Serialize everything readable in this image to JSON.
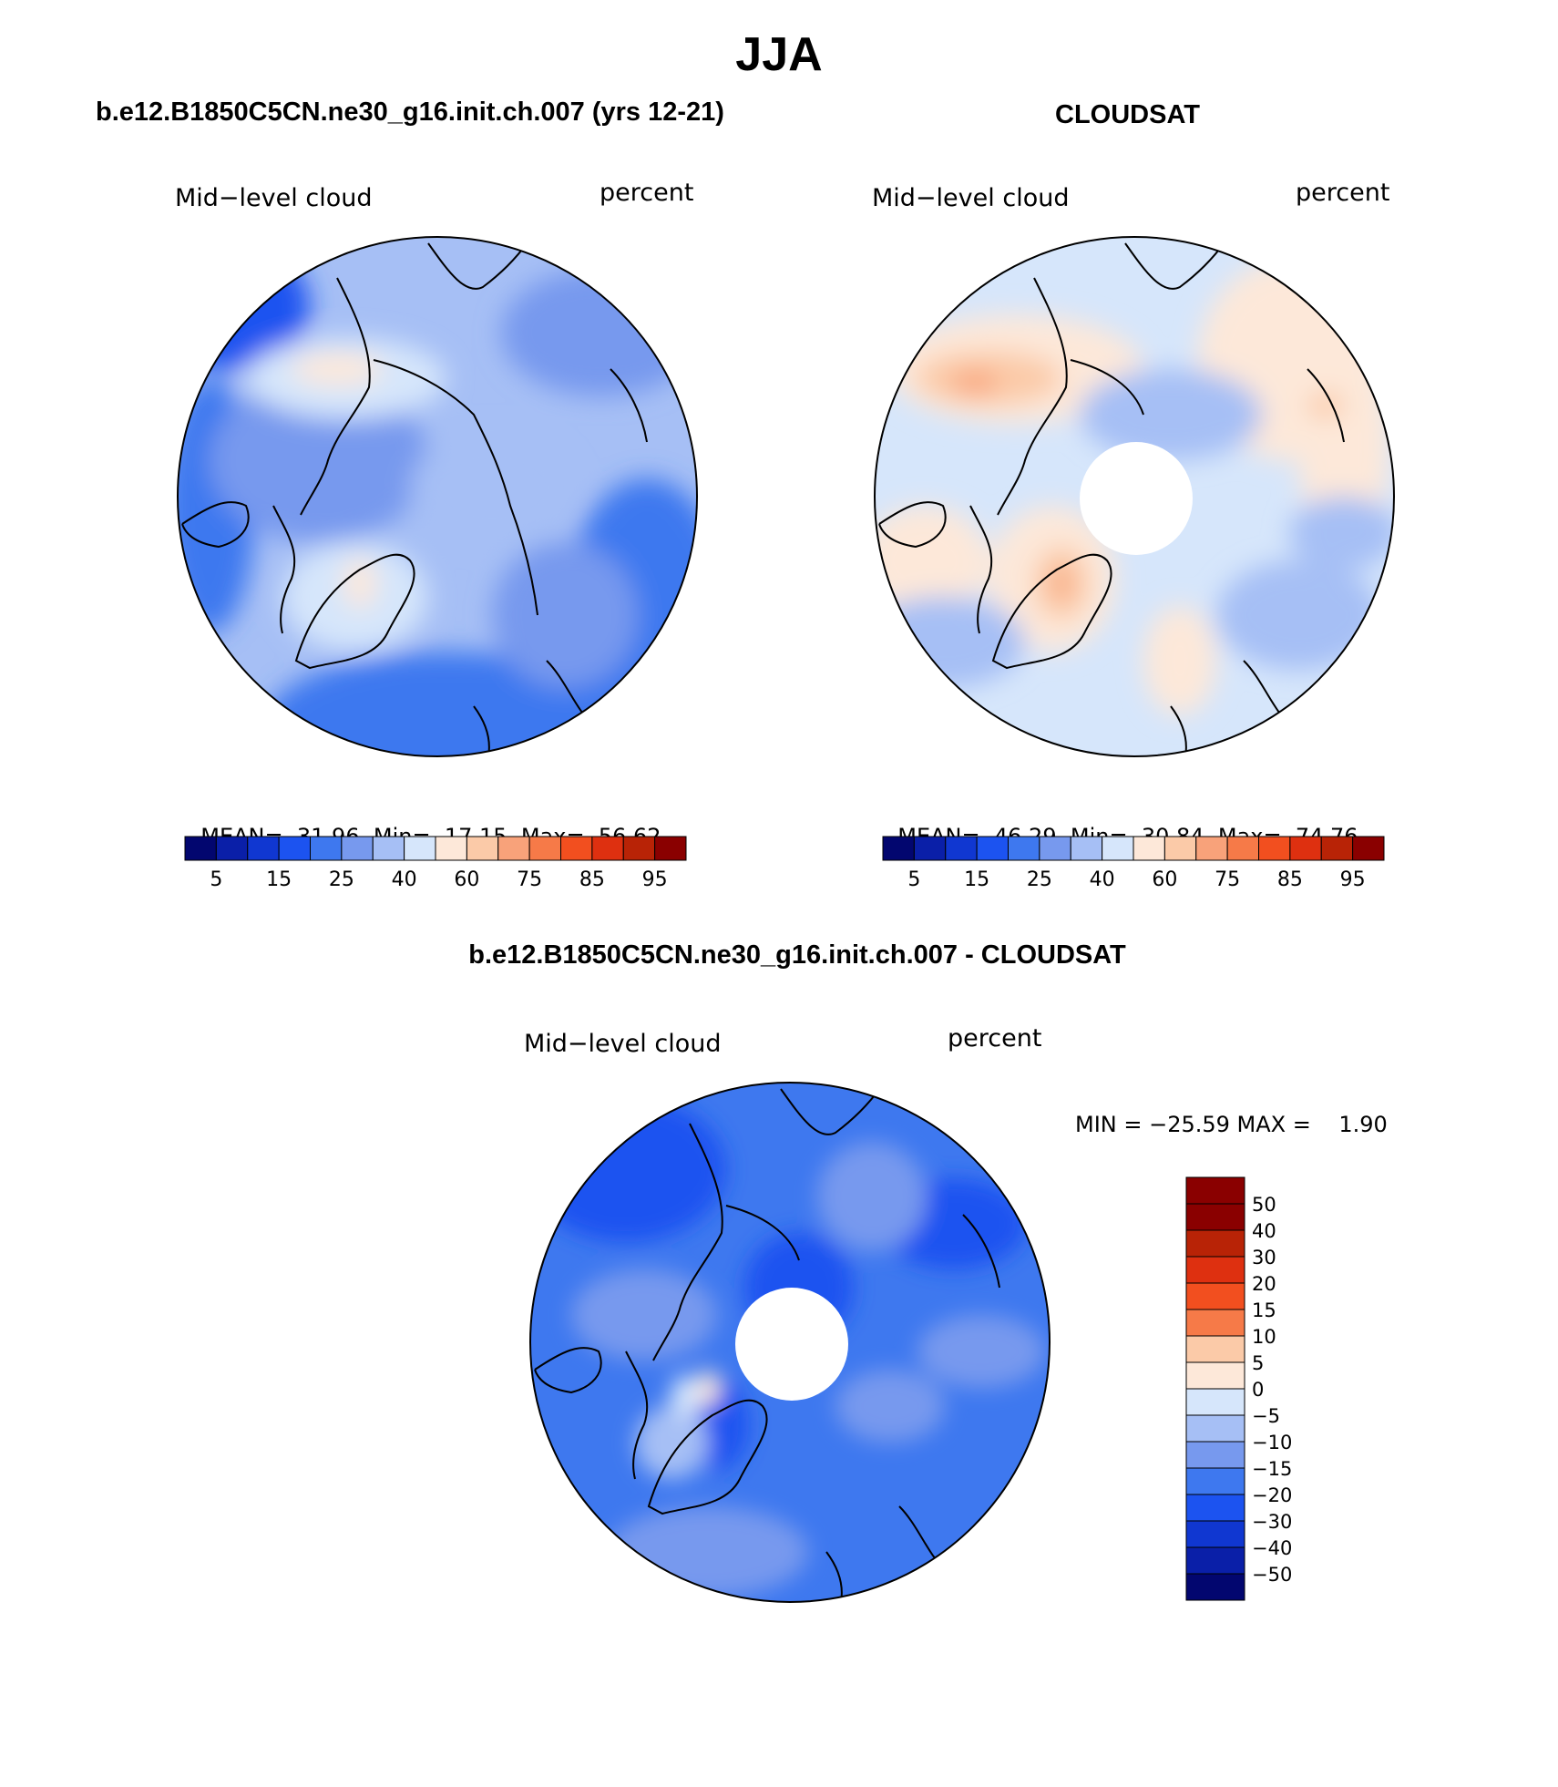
{
  "figure_title": "JJA",
  "colors": {
    "model_obs_scale": [
      "#02066f",
      "#0a1fa8",
      "#1037d1",
      "#1c53f0",
      "#3e78ef",
      "#7799ee",
      "#a6bff5",
      "#d6e6fb",
      "#fde8d9",
      "#fbcaa8",
      "#f8a27a",
      "#f67a48",
      "#f24f1f",
      "#de3010",
      "#b82306",
      "#8a0000"
    ],
    "diff_scale": [
      "#8a0000",
      "#b82306",
      "#de3010",
      "#f24f1f",
      "#f67a48",
      "#fbcaa8",
      "#fde8d9",
      "#d6e6fb",
      "#a6bff5",
      "#7799ee",
      "#3e78ef",
      "#1c53f0",
      "#1037d1",
      "#0a1fa8",
      "#02066f"
    ]
  },
  "panels": {
    "model": {
      "title": "b.e12.B1850C5CN.ne30_g16.init.ch.007 (yrs 12-21)",
      "variable": "Mid−level cloud",
      "units": "percent",
      "stats": {
        "mean_label": "MEAN=",
        "mean": "31.96",
        "min_label": "Min=",
        "min": "17.15",
        "max_label": "Max=",
        "max": "56.62"
      },
      "colorbar_labels": [
        "5",
        "15",
        "25",
        "40",
        "60",
        "75",
        "85",
        "95"
      ]
    },
    "obs": {
      "title": "CLOUDSAT",
      "variable": "Mid−level cloud",
      "units": "percent",
      "stats": {
        "mean_label": "MEAN=",
        "mean": "46.29",
        "min_label": "Min=",
        "min": "30.84",
        "max_label": "Max=",
        "max": "74.76"
      },
      "colorbar_labels": [
        "5",
        "15",
        "25",
        "40",
        "60",
        "75",
        "85",
        "95"
      ]
    },
    "diff": {
      "title": "b.e12.B1850C5CN.ne30_g16.init.ch.007 - CLOUDSAT",
      "variable": "Mid−level cloud",
      "units": "percent",
      "stats_text": "MIN = −25.59 MAX =    1.90",
      "colorbar_labels": [
        "50",
        "40",
        "30",
        "20",
        "15",
        "10",
        "5",
        "0",
        "−5",
        "−10",
        "−15",
        "−20",
        "−30",
        "−40",
        "−50"
      ]
    }
  }
}
